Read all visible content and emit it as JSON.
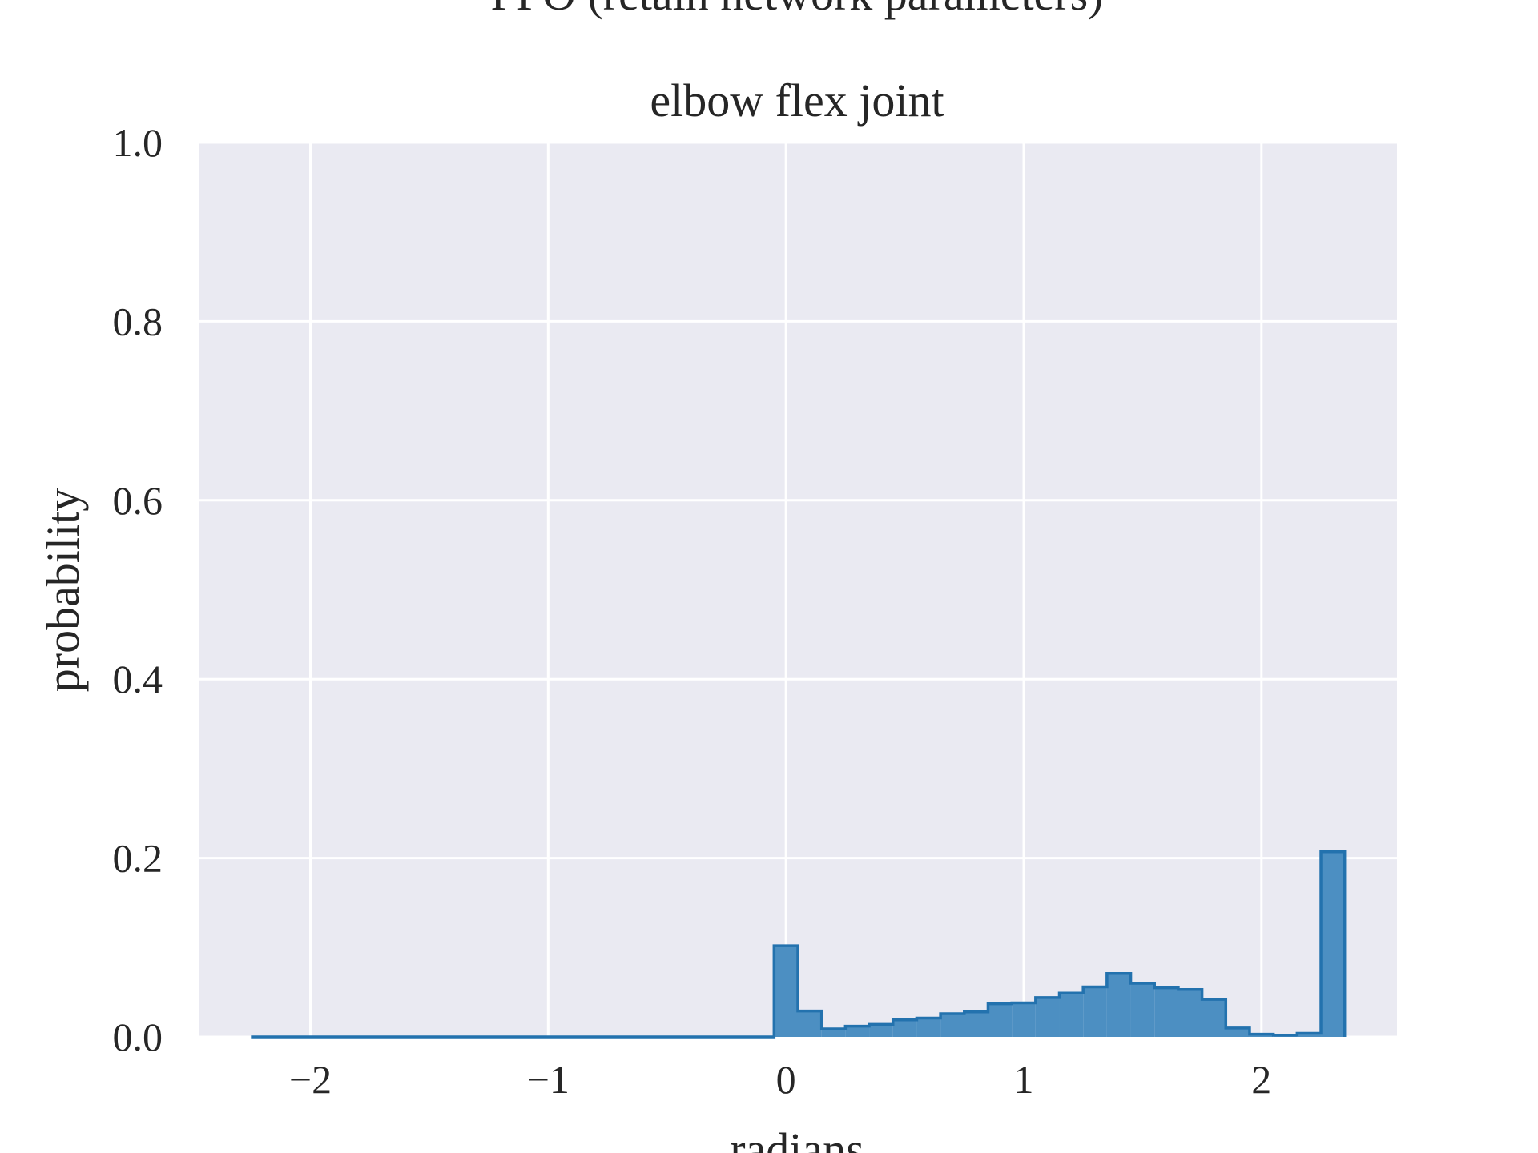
{
  "chart_data": {
    "type": "bar",
    "title": "PPO (retain network parameters)",
    "subtitle": "elbow flex joint",
    "xlabel": "radians",
    "ylabel": "probability",
    "xlim": [
      -2.47,
      2.57
    ],
    "ylim": [
      0.0,
      1.0
    ],
    "x_ticks": [
      -2,
      -1,
      0,
      1,
      2
    ],
    "x_tick_labels": [
      "−2",
      "−1",
      "0",
      "1",
      "2"
    ],
    "y_ticks": [
      0.0,
      0.2,
      0.4,
      0.6,
      0.8,
      1.0
    ],
    "y_tick_labels": [
      "0.0",
      "0.2",
      "0.4",
      "0.6",
      "0.8",
      "1.0"
    ],
    "grid": true,
    "legend": "none",
    "histtype": "stepfilled",
    "bin_edges": [
      -2.25,
      -2.15,
      -2.05,
      -1.95,
      -1.85,
      -1.75,
      -1.65,
      -1.55,
      -1.45,
      -1.35,
      -1.25,
      -1.15,
      -1.05,
      -0.95,
      -0.85,
      -0.75,
      -0.65,
      -0.55,
      -0.45,
      -0.35,
      -0.25,
      -0.15,
      -0.05,
      0.05,
      0.15,
      0.25,
      0.35,
      0.45,
      0.55,
      0.65,
      0.75,
      0.85,
      0.95,
      1.05,
      1.15,
      1.25,
      1.35,
      1.45,
      1.55,
      1.65,
      1.75,
      1.85,
      1.95,
      2.05,
      2.15,
      2.25,
      2.35
    ],
    "values": [
      0,
      0,
      0,
      0,
      0,
      0,
      0,
      0,
      0,
      0,
      0,
      0,
      0,
      0,
      0,
      0,
      0,
      0,
      0,
      0,
      0,
      0,
      0.102,
      0.029,
      0.009,
      0.012,
      0.014,
      0.019,
      0.021,
      0.026,
      0.028,
      0.037,
      0.038,
      0.044,
      0.049,
      0.056,
      0.071,
      0.06,
      0.055,
      0.053,
      0.042,
      0.01,
      0.003,
      0.002,
      0.004,
      0.207
    ],
    "colors": {
      "fill": "#4c8fc2",
      "edge": "#2372ae",
      "axes_bg": "#eaeaf2",
      "grid": "#ffffff",
      "text": "#262626"
    }
  }
}
